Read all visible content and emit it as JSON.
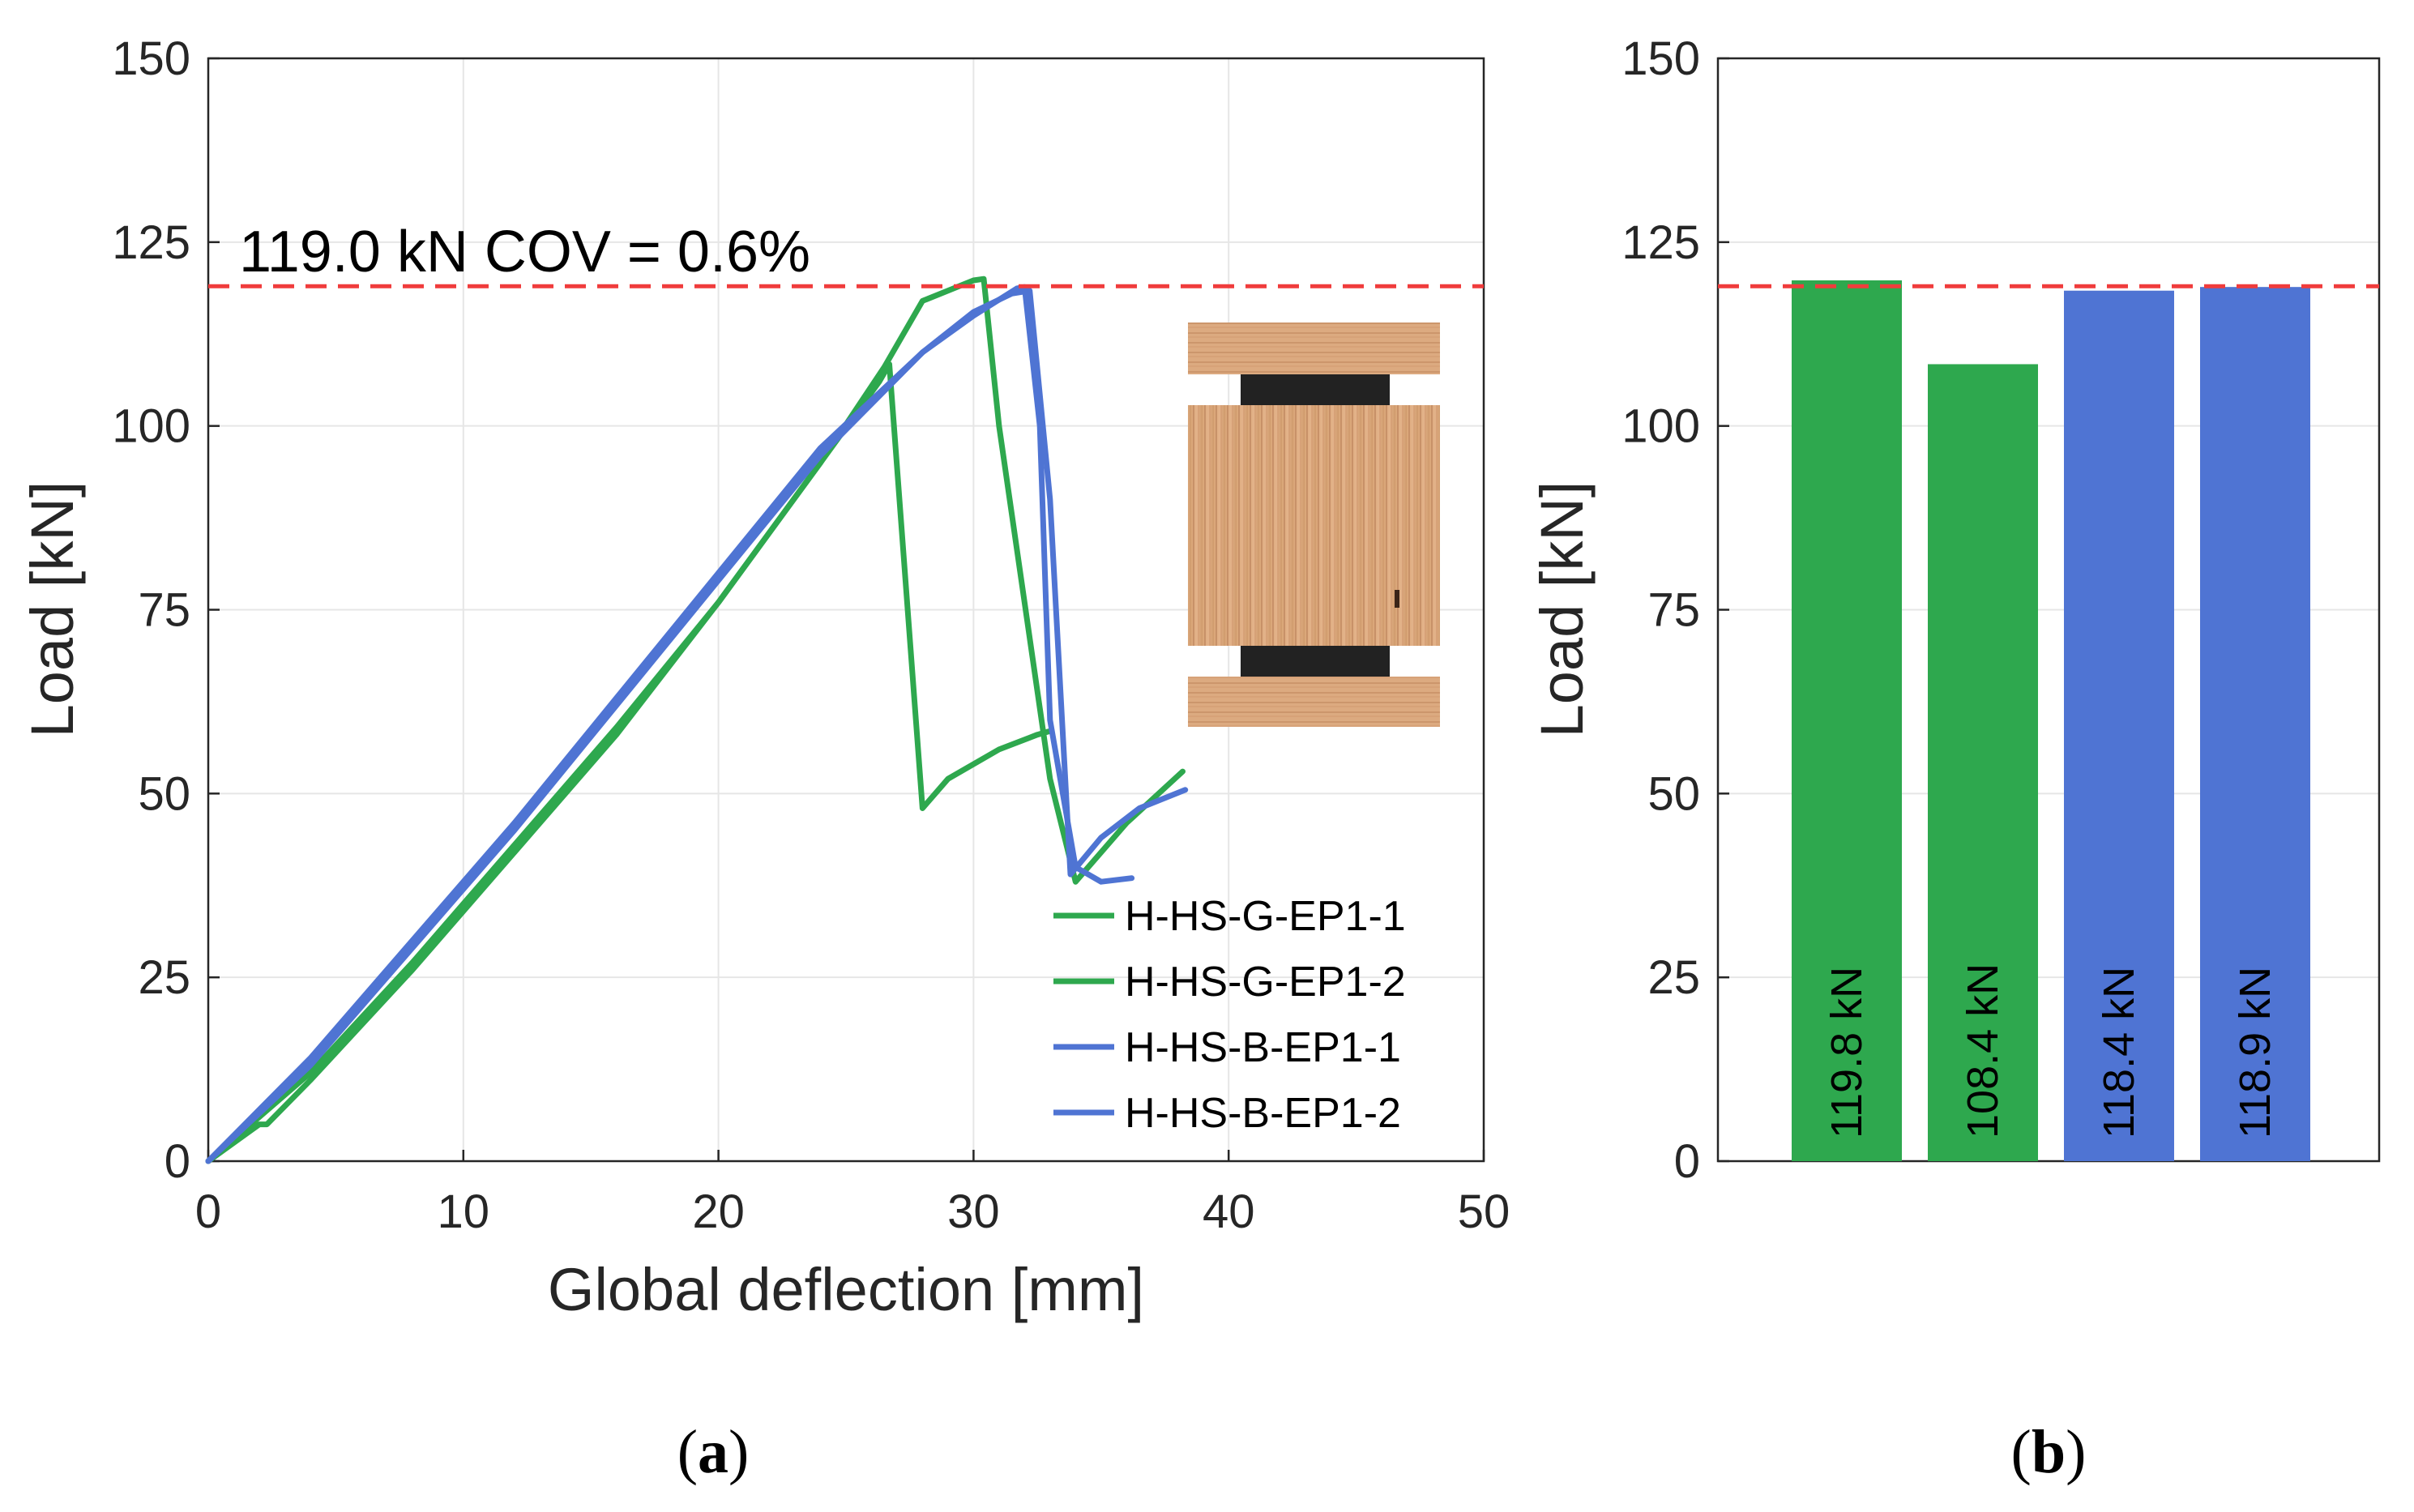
{
  "colors": {
    "green": "#2ea84e",
    "blue": "#4f74d3",
    "reference": "#f03c3c",
    "grid": "#e6e6e6",
    "axis": "#262626"
  },
  "chart_data": [
    {
      "id": "a",
      "type": "line",
      "caption_letter": "a",
      "xlabel": "Global deflection [mm]",
      "ylabel": "Load [kN]",
      "xlim": [
        0,
        50
      ],
      "ylim": [
        0,
        150
      ],
      "xticks": [
        "0",
        "10",
        "20",
        "30",
        "40",
        "50"
      ],
      "yticks": [
        "0",
        "25",
        "50",
        "75",
        "100",
        "125",
        "150"
      ],
      "grid": true,
      "legend_position": "bottom-right",
      "reference_line": {
        "value": 119.0,
        "label": "119.0 kN COV = 0.6%"
      },
      "inset": "specimen-cross-section-photo",
      "series": [
        {
          "name": "H-HS-G-EP1-1",
          "color": "green",
          "x": [
            0,
            2,
            2.3,
            4,
            8,
            12,
            16,
            20,
            24,
            26.5,
            28,
            30,
            30.4,
            31,
            33,
            34,
            36,
            38.2
          ],
          "y": [
            0,
            5,
            5,
            11,
            26,
            42,
            58,
            76,
            95,
            108,
            117,
            119.8,
            120,
            100,
            52,
            38,
            46,
            53
          ]
        },
        {
          "name": "H-HS-G-EP1-2",
          "color": "green",
          "x": [
            0,
            4,
            8,
            12,
            16,
            20,
            24,
            26.3,
            26.7,
            28,
            29,
            31,
            32.5,
            33
          ],
          "y": [
            0,
            12,
            27,
            43,
            59,
            76,
            95,
            106,
            108.4,
            48,
            52,
            56,
            58,
            58.5
          ]
        },
        {
          "name": "H-HS-B-EP1-1",
          "color": "blue",
          "x": [
            0,
            4,
            8,
            12,
            16,
            20,
            24,
            28,
            30,
            31.5,
            32.2,
            33,
            33.8,
            35,
            36.5,
            38.3
          ],
          "y": [
            0,
            13,
            29,
            45,
            62,
            79,
            96,
            110,
            115.5,
            118,
            118.4,
            90,
            39,
            44,
            48,
            50.5
          ]
        },
        {
          "name": "H-HS-B-EP1-2",
          "color": "blue",
          "x": [
            0,
            4,
            8,
            12,
            16,
            20,
            24,
            28,
            30,
            31.7,
            32,
            32.6,
            33,
            34,
            35,
            36.2
          ],
          "y": [
            0,
            14,
            30,
            46,
            63,
            80,
            97,
            110,
            115,
            118.7,
            118.9,
            100,
            60,
            40,
            38,
            38.5
          ]
        }
      ]
    },
    {
      "id": "b",
      "type": "bar",
      "caption_letter": "b",
      "ylabel": "Load [kN]",
      "ylim": [
        0,
        150
      ],
      "yticks": [
        "0",
        "25",
        "50",
        "75",
        "100",
        "125",
        "150"
      ],
      "reference_line": {
        "value": 119.0
      },
      "bars": [
        {
          "value": 119.8,
          "label": "119.8 kN",
          "color": "green"
        },
        {
          "value": 108.4,
          "label": "108.4 kN",
          "color": "green"
        },
        {
          "value": 118.4,
          "label": "118.4 kN",
          "color": "blue"
        },
        {
          "value": 118.9,
          "label": "118.9 kN",
          "color": "blue"
        }
      ]
    }
  ]
}
